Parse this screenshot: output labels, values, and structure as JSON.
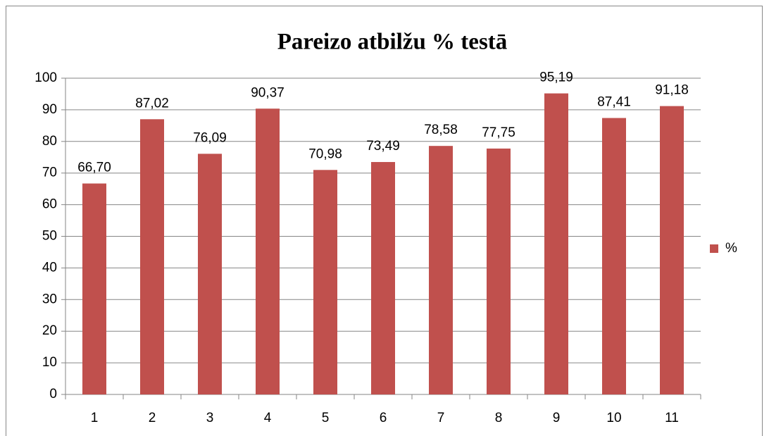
{
  "chart_data": {
    "type": "bar",
    "title": "Pareizo atbilžu % testā",
    "categories": [
      "1",
      "2",
      "3",
      "4",
      "5",
      "6",
      "7",
      "8",
      "9",
      "10",
      "11"
    ],
    "series": [
      {
        "name": "%",
        "color": "#c0504d",
        "values": [
          66.7,
          87.02,
          76.09,
          90.37,
          70.98,
          73.49,
          78.58,
          77.75,
          95.19,
          87.41,
          91.18
        ],
        "value_labels": [
          "66,70",
          "87,02",
          "76,09",
          "90,37",
          "70,98",
          "73,49",
          "78,58",
          "77,75",
          "95,19",
          "87,41",
          "91,18"
        ]
      }
    ],
    "ylim": [
      0,
      100
    ],
    "yticks": [
      0,
      10,
      20,
      30,
      40,
      50,
      60,
      70,
      80,
      90,
      100
    ],
    "grid": true,
    "legend": "right"
  }
}
